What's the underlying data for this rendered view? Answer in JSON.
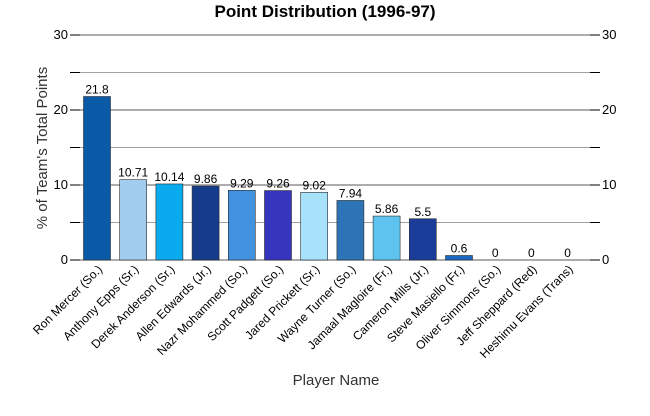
{
  "chart_data": {
    "type": "bar",
    "title": "Point Distribution (1996-97)",
    "xlabel": "Player Name",
    "ylabel": "% of Team's Total Points",
    "ylim": [
      0,
      30
    ],
    "yticks": [
      0,
      10,
      20,
      30
    ],
    "grid": true,
    "categories": [
      "Ron Mercer (So.)",
      "Anthony Epps (Sr.)",
      "Derek Anderson (Sr.)",
      "Allen Edwards (Jr.)",
      "Nazr Mohammed (So.)",
      "Scott Padgett (So.)",
      "Jared Prickett (Sr.)",
      "Wayne Turner (So.)",
      "Jamaal Magloire (Fr.)",
      "Cameron Mills (Jr.)",
      "Steve Masiello (Fr.)",
      "Oliver Simmons (So.)",
      "Jeff Sheppard (Red)",
      "Heshimu Evans (Trans)"
    ],
    "values": [
      21.8,
      10.71,
      10.14,
      9.86,
      9.29,
      9.26,
      9.02,
      7.94,
      5.86,
      5.5,
      0.6,
      0,
      0,
      0
    ],
    "colors": [
      "#0a5aa8",
      "#a3cdef",
      "#0aaaee",
      "#143c8a",
      "#4292e0",
      "#3535bd",
      "#a8e2fa",
      "#2c74b6",
      "#5ec4ef",
      "#1a3d9a",
      "#1a6ac2",
      "#1a5fb0",
      "#1a5fb0",
      "#1a5fb0"
    ]
  }
}
